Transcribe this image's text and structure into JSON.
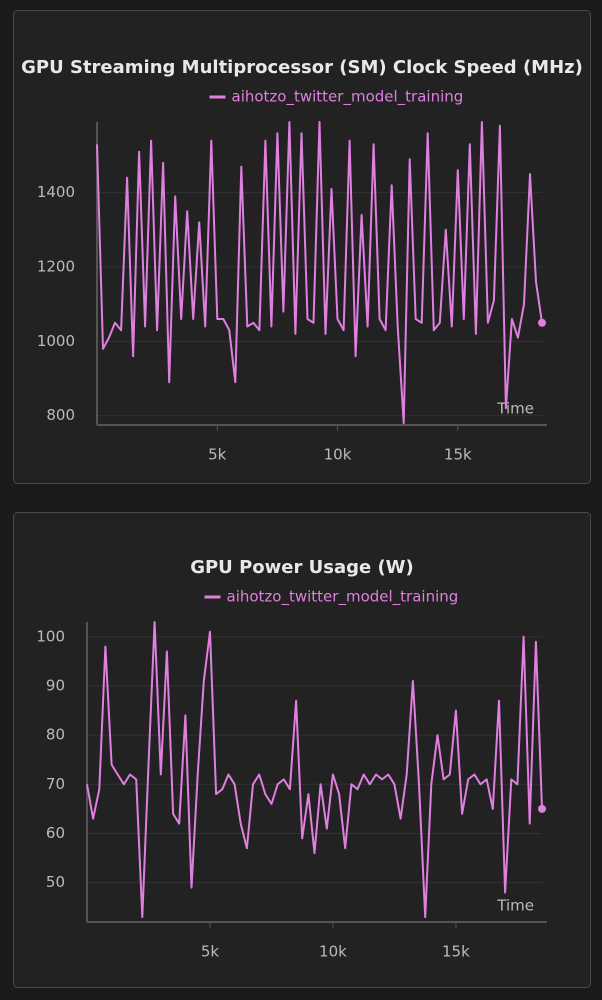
{
  "chart_data": [
    {
      "type": "line",
      "title": "GPU Streaming Multiprocessor (SM) Clock Speed (MHz)",
      "x_label": "Time",
      "x": [
        0,
        250,
        500,
        750,
        1000,
        1250,
        1500,
        1750,
        2000,
        2250,
        2500,
        2750,
        3000,
        3250,
        3500,
        3750,
        4000,
        4250,
        4500,
        4750,
        5000,
        5250,
        5500,
        5750,
        6000,
        6250,
        6500,
        6750,
        7000,
        7250,
        7500,
        7750,
        8000,
        8250,
        8500,
        8750,
        9000,
        9250,
        9500,
        9750,
        10000,
        10250,
        10500,
        10750,
        11000,
        11250,
        11500,
        11750,
        12000,
        12250,
        12500,
        12750,
        13000,
        13250,
        13500,
        13750,
        14000,
        14250,
        14500,
        14750,
        15000,
        15250,
        15500,
        15750,
        16000,
        16250,
        16500,
        16750,
        17000,
        17250,
        17500,
        17750,
        18000,
        18250,
        18500
      ],
      "series": [
        {
          "name": "aihotzo_twitter_model_training",
          "color": "#e07fe0",
          "values": [
            1530,
            980,
            1010,
            1050,
            1030,
            1440,
            960,
            1510,
            1040,
            1540,
            1030,
            1480,
            890,
            1390,
            1060,
            1350,
            1060,
            1320,
            1040,
            1540,
            1060,
            1060,
            1030,
            890,
            1470,
            1040,
            1050,
            1030,
            1540,
            1040,
            1560,
            1080,
            1590,
            1020,
            1560,
            1060,
            1050,
            1590,
            1020,
            1410,
            1060,
            1030,
            1540,
            960,
            1340,
            1040,
            1530,
            1060,
            1030,
            1420,
            1040,
            780,
            1490,
            1060,
            1050,
            1560,
            1030,
            1050,
            1300,
            1040,
            1460,
            1060,
            1530,
            1020,
            1590,
            1050,
            1110,
            1580,
            820,
            1060,
            1010,
            1100,
            1450,
            1160,
            1050
          ]
        }
      ],
      "xlim": [
        0,
        18500
      ],
      "xticks": [
        {
          "value": 5000,
          "label": "5k"
        },
        {
          "value": 10000,
          "label": "10k"
        },
        {
          "value": 15000,
          "label": "15k"
        }
      ],
      "ylim": [
        775,
        1590
      ],
      "yticks": [
        800,
        1000,
        1200,
        1400
      ],
      "grid": true
    },
    {
      "type": "line",
      "title": "GPU Power Usage (W)",
      "x_label": "Time",
      "x": [
        0,
        250,
        500,
        750,
        1000,
        1250,
        1500,
        1750,
        2000,
        2250,
        2500,
        2750,
        3000,
        3250,
        3500,
        3750,
        4000,
        4250,
        4500,
        4750,
        5000,
        5250,
        5500,
        5750,
        6000,
        6250,
        6500,
        6750,
        7000,
        7250,
        7500,
        7750,
        8000,
        8250,
        8500,
        8750,
        9000,
        9250,
        9500,
        9750,
        10000,
        10250,
        10500,
        10750,
        11000,
        11250,
        11500,
        11750,
        12000,
        12250,
        12500,
        12750,
        13000,
        13250,
        13500,
        13750,
        14000,
        14250,
        14500,
        14750,
        15000,
        15250,
        15500,
        15750,
        16000,
        16250,
        16500,
        16750,
        17000,
        17250,
        17500,
        17750,
        18000,
        18250,
        18500
      ],
      "series": [
        {
          "name": "aihotzo_twitter_model_training",
          "color": "#e07fe0",
          "values": [
            70,
            63,
            69,
            98,
            74,
            72,
            70,
            72,
            71,
            43,
            74,
            103,
            72,
            97,
            64,
            62,
            84,
            49,
            72,
            91,
            101,
            68,
            69,
            72,
            70,
            62,
            57,
            70,
            72,
            68,
            66,
            70,
            71,
            69,
            87,
            59,
            68,
            56,
            70,
            61,
            72,
            68,
            57,
            70,
            69,
            72,
            70,
            72,
            71,
            72,
            70,
            63,
            72,
            91,
            70,
            43,
            70,
            80,
            71,
            72,
            85,
            64,
            71,
            72,
            70,
            71,
            65,
            87,
            48,
            71,
            70,
            100,
            62,
            99,
            65
          ]
        }
      ],
      "xlim": [
        0,
        18500
      ],
      "xticks": [
        {
          "value": 5000,
          "label": "5k"
        },
        {
          "value": 10000,
          "label": "10k"
        },
        {
          "value": 15000,
          "label": "15k"
        }
      ],
      "ylim": [
        42,
        103
      ],
      "yticks": [
        50,
        60,
        70,
        80,
        90,
        100
      ],
      "grid": true
    }
  ]
}
